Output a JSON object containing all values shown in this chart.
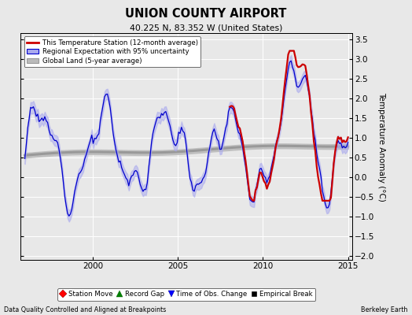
{
  "title": "UNION COUNTY AIRPORT",
  "subtitle": "40.225 N, 83.352 W (United States)",
  "ylabel": "Temperature Anomaly (°C)",
  "xlim": [
    1995.75,
    2015.25
  ],
  "ylim": [
    -2.1,
    3.65
  ],
  "yticks": [
    -2,
    -1.5,
    -1,
    -0.5,
    0,
    0.5,
    1,
    1.5,
    2,
    2.5,
    3,
    3.5
  ],
  "xticks": [
    2000,
    2005,
    2010,
    2015
  ],
  "bg_color": "#e8e8e8",
  "grid_color": "#ffffff",
  "station_color": "#cc0000",
  "regional_color": "#0000cc",
  "regional_fill": "#aaaaee",
  "global_color": "#999999",
  "global_fill": "#bbbbbb",
  "footer_left": "Data Quality Controlled and Aligned at Breakpoints",
  "footer_right": "Berkeley Earth",
  "legend1_entries": [
    "This Temperature Station (12-month average)",
    "Regional Expectation with 95% uncertainty",
    "Global Land (5-year average)"
  ],
  "legend2_entries": [
    "Station Move",
    "Record Gap",
    "Time of Obs. Change",
    "Empirical Break"
  ]
}
